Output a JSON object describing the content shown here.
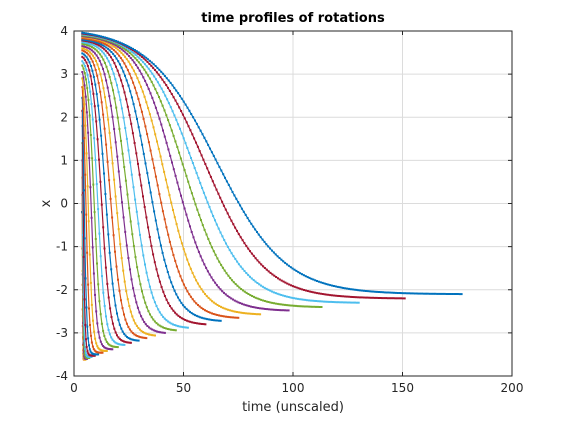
{
  "chart_data": {
    "type": "line",
    "title": "time profiles of rotations",
    "xlabel": "time (unscaled)",
    "ylabel": "x",
    "xlim": [
      0,
      200
    ],
    "ylim": [
      -4,
      4
    ],
    "xticks": [
      "0",
      "50",
      "100",
      "150",
      "200"
    ],
    "yticks": [
      "4",
      "3",
      "2",
      "1",
      "0",
      "-1",
      "-2",
      "-3",
      "-4"
    ],
    "grid": true,
    "legend": false,
    "series_colors": [
      "#0072BD",
      "#D95319",
      "#EDB120",
      "#7E2F8E",
      "#77AC30",
      "#4DBEEE",
      "#A2142F"
    ],
    "series": [
      {
        "x0": 3.8,
        "x1": 3.8,
        "y0": -0.2,
        "y1": -3.6,
        "mid": 0.3
      },
      {
        "x0": 3.8,
        "x1": 4.5,
        "y0": 0.2,
        "y1": -3.62,
        "mid": 0.8
      },
      {
        "x0": 3.8,
        "x1": 5.2,
        "y0": 0.6,
        "y1": -3.62,
        "mid": 1.3
      },
      {
        "x0": 3.8,
        "x1": 6,
        "y0": 1.0,
        "y1": -3.6,
        "mid": 1.8
      },
      {
        "x0": 3.8,
        "x1": 7,
        "y0": 1.4,
        "y1": -3.58,
        "mid": 2.4
      },
      {
        "x0": 3.8,
        "x1": 8,
        "y0": 1.8,
        "y1": -3.56,
        "mid": 3.0
      },
      {
        "x0": 3.8,
        "x1": 9.5,
        "y0": 2.15,
        "y1": -3.53,
        "mid": 3.7
      },
      {
        "x0": 3.8,
        "x1": 11,
        "y0": 2.45,
        "y1": -3.5,
        "mid": 4.5
      },
      {
        "x0": 3.8,
        "x1": 13,
        "y0": 2.7,
        "y1": -3.46,
        "mid": 5.4
      },
      {
        "x0": 3.8,
        "x1": 15,
        "y0": 2.9,
        "y1": -3.42,
        "mid": 6.5
      },
      {
        "x0": 3.8,
        "x1": 17.5,
        "y0": 3.05,
        "y1": -3.38,
        "mid": 7.8
      },
      {
        "x0": 3.8,
        "x1": 20,
        "y0": 3.2,
        "y1": -3.33,
        "mid": 9.2
      },
      {
        "x0": 3.8,
        "x1": 23,
        "y0": 3.3,
        "y1": -3.28,
        "mid": 10.8
      },
      {
        "x0": 3.8,
        "x1": 26,
        "y0": 3.4,
        "y1": -3.23,
        "mid": 12.5
      },
      {
        "x0": 3.8,
        "x1": 29.5,
        "y0": 3.48,
        "y1": -3.18,
        "mid": 14.4
      },
      {
        "x0": 3.8,
        "x1": 33,
        "y0": 3.55,
        "y1": -3.12,
        "mid": 16.5
      },
      {
        "x0": 3.8,
        "x1": 37,
        "y0": 3.6,
        "y1": -3.06,
        "mid": 18.8
      },
      {
        "x0": 3.8,
        "x1": 41.5,
        "y0": 3.65,
        "y1": -3.0,
        "mid": 21.3
      },
      {
        "x0": 3.8,
        "x1": 46.5,
        "y0": 3.7,
        "y1": -2.94,
        "mid": 24.0
      },
      {
        "x0": 3.8,
        "x1": 52,
        "y0": 3.74,
        "y1": -2.88,
        "mid": 27.0
      },
      {
        "x0": 3.8,
        "x1": 60,
        "y0": 3.78,
        "y1": -2.8,
        "mid": 30.5
      },
      {
        "x0": 3.8,
        "x1": 67,
        "y0": 3.8,
        "y1": -2.72,
        "mid": 34.0
      },
      {
        "x0": 3.8,
        "x1": 75,
        "y0": 3.83,
        "y1": -2.65,
        "mid": 37.5
      },
      {
        "x0": 3.8,
        "x1": 85,
        "y0": 3.86,
        "y1": -2.57,
        "mid": 41.5
      },
      {
        "x0": 3.8,
        "x1": 98,
        "y0": 3.88,
        "y1": -2.48,
        "mid": 46.0
      },
      {
        "x0": 3.8,
        "x1": 113,
        "y0": 3.9,
        "y1": -2.4,
        "mid": 50.5
      },
      {
        "x0": 3.8,
        "x1": 130,
        "y0": 3.92,
        "y1": -2.3,
        "mid": 55.0
      },
      {
        "x0": 3.8,
        "x1": 151,
        "y0": 3.94,
        "y1": -2.2,
        "mid": 60.0
      },
      {
        "x0": 3.8,
        "x1": 177,
        "y0": 3.96,
        "y1": -2.1,
        "mid": 65.0
      }
    ]
  }
}
